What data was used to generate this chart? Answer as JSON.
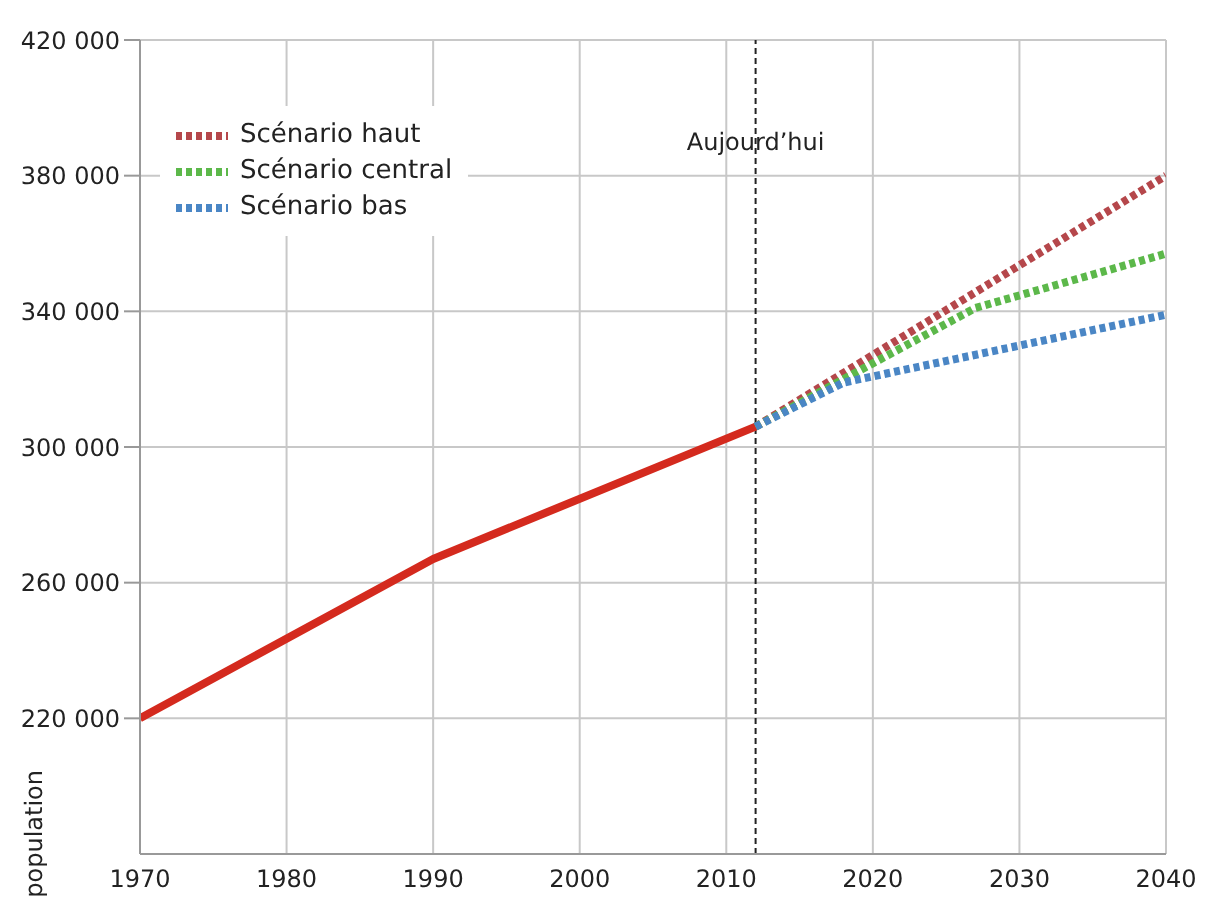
{
  "chart_data": {
    "type": "line",
    "ylabel": "population",
    "legend": "top left",
    "grid": true,
    "marker": "none",
    "xlim": [
      1970,
      2040
    ],
    "xticks": [
      1970,
      1980,
      1990,
      2000,
      2010,
      2020,
      2030,
      2040
    ],
    "ylim": [
      180000,
      420000
    ],
    "yticks": [
      {
        "value": 220000,
        "label": "220 000"
      },
      {
        "value": 260000,
        "label": "260 000"
      },
      {
        "value": 300000,
        "label": "300 000"
      },
      {
        "value": 340000,
        "label": "340 000"
      },
      {
        "value": 380000,
        "label": "380 000"
      },
      {
        "value": 420000,
        "label": "420 000"
      }
    ],
    "ref_lines": [
      {
        "axis": "x",
        "value": 2012,
        "label": "Aujourd’hui",
        "color": "#222222",
        "line_style": "dashed"
      }
    ],
    "series": [
      {
        "color": "#d42a1e",
        "line_style": "solid",
        "x": [
          1970,
          1990,
          2012
        ],
        "values": [
          220000,
          267000,
          306000
        ]
      },
      {
        "name": "Scénario haut",
        "color": "#b5474b",
        "line_style": "dotted",
        "x": [
          2012,
          2040
        ],
        "values": [
          306000,
          380000
        ]
      },
      {
        "name": "Scénario central",
        "color": "#5cb84a",
        "line_style": "dotted",
        "x": [
          2012,
          2027,
          2040
        ],
        "values": [
          306000,
          341000,
          357000
        ]
      },
      {
        "name": "Scénario bas",
        "color": "#4a86c5",
        "line_style": "dotted",
        "x": [
          2012,
          2018,
          2040
        ],
        "values": [
          306000,
          319000,
          339000
        ]
      }
    ]
  }
}
